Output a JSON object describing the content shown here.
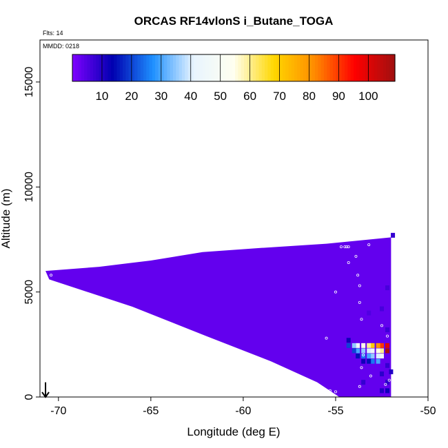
{
  "chart_data": {
    "type": "heatmap",
    "title": "ORCAS RF14vlonS i_Butane_TOGA",
    "flights_label": "Flts: 14",
    "mmdd_label": "MMDD: 0218",
    "xlabel": "Longitude (deg E)",
    "ylabel": "Altitude (m)",
    "xlim": [
      -71,
      -50
    ],
    "ylim": [
      0,
      17000
    ],
    "xticks": [
      -70,
      -65,
      -60,
      -55,
      -50
    ],
    "yticks": [
      0,
      5000,
      10000,
      15000
    ],
    "colorbar": {
      "range": [
        0,
        109
      ],
      "ticks": [
        10,
        20,
        30,
        40,
        50,
        60,
        70,
        80,
        90,
        100
      ],
      "colors": [
        "#7f00ff",
        "#0000b0",
        "#1e90ff",
        "#e8f4ff",
        "#fffff0",
        "#ffd700",
        "#ff8c00",
        "#ff0000",
        "#a01010"
      ]
    },
    "background_value": 3,
    "envelope": {
      "top": [
        [
          -70.7,
          6000
        ],
        [
          -67.8,
          6200
        ],
        [
          -65.0,
          6500
        ],
        [
          -62.2,
          6900
        ],
        [
          -59.0,
          7100
        ],
        [
          -55.5,
          7300
        ],
        [
          -52.0,
          7600
        ]
      ],
      "bottom": [
        [
          -70.5,
          5600
        ],
        [
          -66.0,
          4300
        ],
        [
          -62.0,
          2900
        ],
        [
          -58.5,
          1700
        ],
        [
          -56.0,
          700
        ],
        [
          -54.8,
          0
        ],
        [
          -52.0,
          0
        ]
      ],
      "right_edge": -52.0
    },
    "hotspots": [
      {
        "lon": -52.2,
        "alt": 2450,
        "value": 100
      },
      {
        "lon": -52.5,
        "alt": 2450,
        "value": 90
      },
      {
        "lon": -52.7,
        "alt": 2450,
        "value": 80
      },
      {
        "lon": -53.0,
        "alt": 2450,
        "value": 70
      },
      {
        "lon": -53.2,
        "alt": 2450,
        "value": 60
      },
      {
        "lon": -53.5,
        "alt": 2450,
        "value": 55
      },
      {
        "lon": -53.8,
        "alt": 2450,
        "value": 45
      },
      {
        "lon": -54.0,
        "alt": 2450,
        "value": 35
      },
      {
        "lon": -54.3,
        "alt": 2450,
        "value": 20
      },
      {
        "lon": -52.2,
        "alt": 2200,
        "value": 108
      },
      {
        "lon": -52.5,
        "alt": 2200,
        "value": 60
      },
      {
        "lon": -52.7,
        "alt": 2200,
        "value": 55
      },
      {
        "lon": -53.0,
        "alt": 2200,
        "value": 45
      },
      {
        "lon": -53.2,
        "alt": 2200,
        "value": 40
      },
      {
        "lon": -53.5,
        "alt": 2200,
        "value": 35
      },
      {
        "lon": -53.8,
        "alt": 2200,
        "value": 30
      },
      {
        "lon": -54.0,
        "alt": 2200,
        "value": 20
      },
      {
        "lon": -52.5,
        "alt": 1950,
        "value": 45
      },
      {
        "lon": -52.7,
        "alt": 1950,
        "value": 40
      },
      {
        "lon": -53.0,
        "alt": 1950,
        "value": 35
      },
      {
        "lon": -53.2,
        "alt": 1950,
        "value": 30
      },
      {
        "lon": -53.5,
        "alt": 1950,
        "value": 25
      },
      {
        "lon": -53.8,
        "alt": 1950,
        "value": 15
      },
      {
        "lon": -52.7,
        "alt": 1700,
        "value": 30
      },
      {
        "lon": -53.0,
        "alt": 1700,
        "value": 25
      },
      {
        "lon": -53.2,
        "alt": 1700,
        "value": 15
      },
      {
        "lon": -53.5,
        "alt": 1700,
        "value": 12
      },
      {
        "lon": -54.3,
        "alt": 2700,
        "value": 12
      },
      {
        "lon": -52.2,
        "alt": 300,
        "value": 12
      },
      {
        "lon": -52.5,
        "alt": 300,
        "value": 10
      },
      {
        "lon": -52.2,
        "alt": 700,
        "value": 9
      },
      {
        "lon": -52.5,
        "alt": 1100,
        "value": 9
      },
      {
        "lon": -52.2,
        "alt": 1500,
        "value": 8
      },
      {
        "lon": -52.0,
        "alt": 1200,
        "value": 10
      },
      {
        "lon": -53.5,
        "alt": 700,
        "value": 8
      },
      {
        "lon": -52.2,
        "alt": 3200,
        "value": 7
      },
      {
        "lon": -52.5,
        "alt": 4200,
        "value": 6
      },
      {
        "lon": -52.2,
        "alt": 5200,
        "value": 6
      },
      {
        "lon": -53.2,
        "alt": 4000,
        "value": 5
      },
      {
        "lon": -51.9,
        "alt": 7700,
        "value": 8
      }
    ],
    "flight_track_points": [
      [
        -54.7,
        7150
      ],
      [
        -54.5,
        7150
      ],
      [
        -54.4,
        7150
      ],
      [
        -54.3,
        7150
      ],
      [
        -53.2,
        7250
      ],
      [
        -54.3,
        6400
      ],
      [
        -53.9,
        6700
      ],
      [
        -53.8,
        5800
      ],
      [
        -53.7,
        5300
      ],
      [
        -53.7,
        4500
      ],
      [
        -53.6,
        3700
      ],
      [
        -53.5,
        2000
      ],
      [
        -53.6,
        1400
      ],
      [
        -53.7,
        500
      ],
      [
        -55.5,
        2800
      ],
      [
        -55.3,
        300
      ],
      [
        -55.0,
        250
      ],
      [
        -52.5,
        3400
      ],
      [
        -52.2,
        2900
      ],
      [
        -52.3,
        600
      ],
      [
        -53.1,
        1000
      ],
      [
        -52.1,
        800
      ],
      [
        -70.4,
        5800
      ],
      [
        -55.0,
        5000
      ]
    ],
    "arrow": {
      "lon": -70.7,
      "alt_from": 700,
      "alt_to": 0
    }
  }
}
